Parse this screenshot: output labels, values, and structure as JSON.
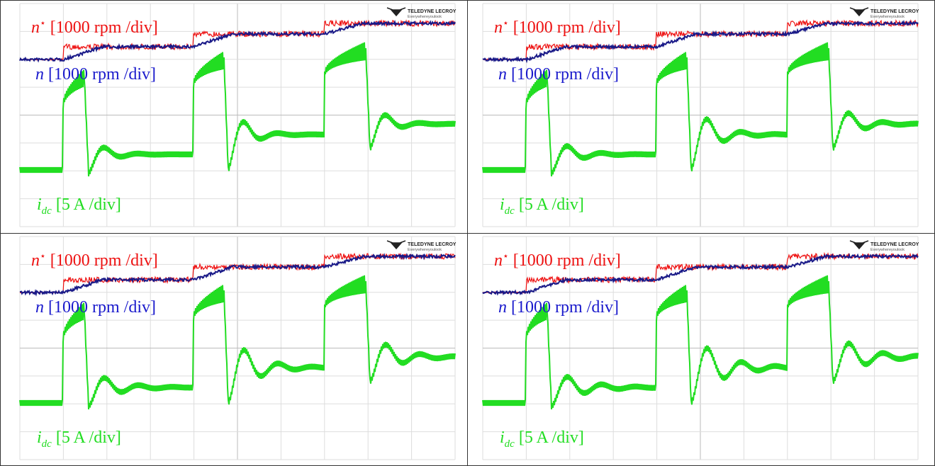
{
  "panels": [
    {
      "logo": {
        "brand": "TELEDYNE LECROY",
        "tagline": "Everywhereyoulook"
      },
      "labels": [
        {
          "symbol": "n",
          "superscript": "⋆",
          "unit": "[1000 rpm /div]",
          "color": "#ee1111"
        },
        {
          "symbol": "n",
          "unit": "[1000 rpm /div]",
          "color": "#1a1acc"
        },
        {
          "symbol": "i",
          "subscript": "dc",
          "unit": "[5 A /div]",
          "color": "#22dd22"
        }
      ]
    },
    {
      "logo": {
        "brand": "TELEDYNE LECROY",
        "tagline": "Everywhereyoulook"
      },
      "labels": [
        {
          "symbol": "n",
          "superscript": "⋆",
          "unit": "[1000 rpm /div]",
          "color": "#ee1111"
        },
        {
          "symbol": "n",
          "unit": "[1000 rpm /div]",
          "color": "#1a1acc"
        },
        {
          "symbol": "i",
          "subscript": "dc",
          "unit": "[5 A /div]",
          "color": "#22dd22"
        }
      ]
    },
    {
      "logo": {
        "brand": "TELEDYNE LECROY",
        "tagline": "Everywhereyoulook"
      },
      "labels": [
        {
          "symbol": "n",
          "superscript": "⋆",
          "unit": "[1000 rpm /div]",
          "color": "#ee1111"
        },
        {
          "symbol": "n",
          "unit": "[1000 rpm /div]",
          "color": "#1a1acc"
        },
        {
          "symbol": "i",
          "subscript": "dc",
          "unit": "[5 A /div]",
          "color": "#22dd22"
        }
      ]
    },
    {
      "logo": {
        "brand": "TELEDYNE LECROY",
        "tagline": "Everywhereyoulook"
      },
      "labels": [
        {
          "symbol": "n",
          "superscript": "⋆",
          "unit": "[1000 rpm /div]",
          "color": "#ee1111"
        },
        {
          "symbol": "n",
          "unit": "[1000 rpm /div]",
          "color": "#1a1acc"
        },
        {
          "symbol": "i",
          "subscript": "dc",
          "unit": "[5 A /div]",
          "color": "#22dd22"
        }
      ]
    }
  ]
}
